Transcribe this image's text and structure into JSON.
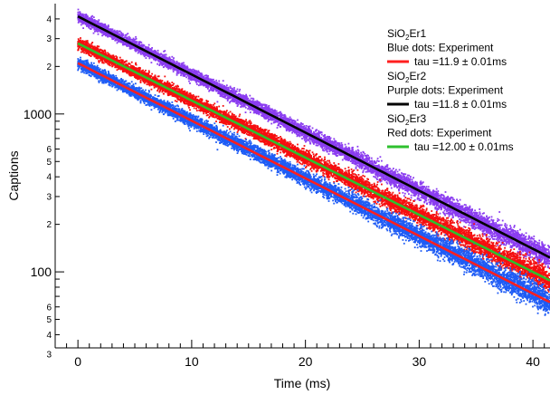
{
  "chart_data": {
    "type": "scatter",
    "title": "",
    "xlabel": "Time (ms)",
    "ylabel": "Captions",
    "x_scale": "linear",
    "y_scale": "log",
    "xlim": [
      -2,
      41.5
    ],
    "ylim": [
      33,
      5000
    ],
    "x_ticks": [
      0,
      10,
      20,
      30,
      40
    ],
    "y_major_ticks": [
      {
        "value": 100,
        "label": "100"
      },
      {
        "value": 1000,
        "label": "1000"
      }
    ],
    "y_minor_labeled_ticks": [
      {
        "value": 30,
        "label": "3"
      },
      {
        "value": 40,
        "label": "4"
      },
      {
        "value": 50,
        "label": "5"
      },
      {
        "value": 60,
        "label": "6"
      },
      {
        "value": 200,
        "label": "2"
      },
      {
        "value": 300,
        "label": "3"
      },
      {
        "value": 400,
        "label": "4"
      },
      {
        "value": 500,
        "label": "5"
      },
      {
        "value": 600,
        "label": "6"
      },
      {
        "value": 2000,
        "label": "2"
      },
      {
        "value": 3000,
        "label": "3"
      },
      {
        "value": 4000,
        "label": "4"
      }
    ],
    "grid": false,
    "legend_position": "top-right",
    "series": [
      {
        "name": "Blue dots: Experiment",
        "color": "#1f5cf5",
        "kind": "points",
        "y_at_t0": 2100,
        "tau_ms": 11.9
      },
      {
        "name": "Purple dots: Experiment",
        "color": "#8b3df0",
        "kind": "points",
        "y_at_t0": 4150,
        "tau_ms": 11.8
      },
      {
        "name": "Red dots: Experiment",
        "color": "#f50f0f",
        "kind": "points",
        "y_at_t0": 2800,
        "tau_ms": 12.0
      },
      {
        "name": "tau =11.9 ± 0.01ms",
        "color": "#ff1f1f",
        "kind": "fit",
        "y_at_t0": 2100,
        "tau_ms": 11.9
      },
      {
        "name": "tau =11.8 ± 0.01ms",
        "color": "#000000",
        "kind": "fit",
        "y_at_t0": 4150,
        "tau_ms": 11.8
      },
      {
        "name": "tau =12.00 ± 0.01ms",
        "color": "#2ec02e",
        "kind": "fit",
        "y_at_t0": 2800,
        "tau_ms": 12.0
      }
    ],
    "legend": {
      "groups": [
        {
          "sample_base": "SiO",
          "sample_sub": "2",
          "sample_rest": "Er1",
          "dots": "Blue dots: Experiment",
          "fit_label": "tau =11.9  ±  0.01ms",
          "fit_color": "#ff1f1f"
        },
        {
          "sample_base": "SiO",
          "sample_sub": "2",
          "sample_rest": "Er2",
          "dots": "Purple dots: Experiment",
          "fit_label": "tau =11.8  ±  0.01ms",
          "fit_color": "#000000"
        },
        {
          "sample_base": "SiO",
          "sample_sub": "2",
          "sample_rest": "Er3",
          "dots": "Red dots: Experiment",
          "fit_label": "tau =12.00  ±  0.01ms",
          "fit_color": "#2ec02e"
        }
      ]
    }
  }
}
